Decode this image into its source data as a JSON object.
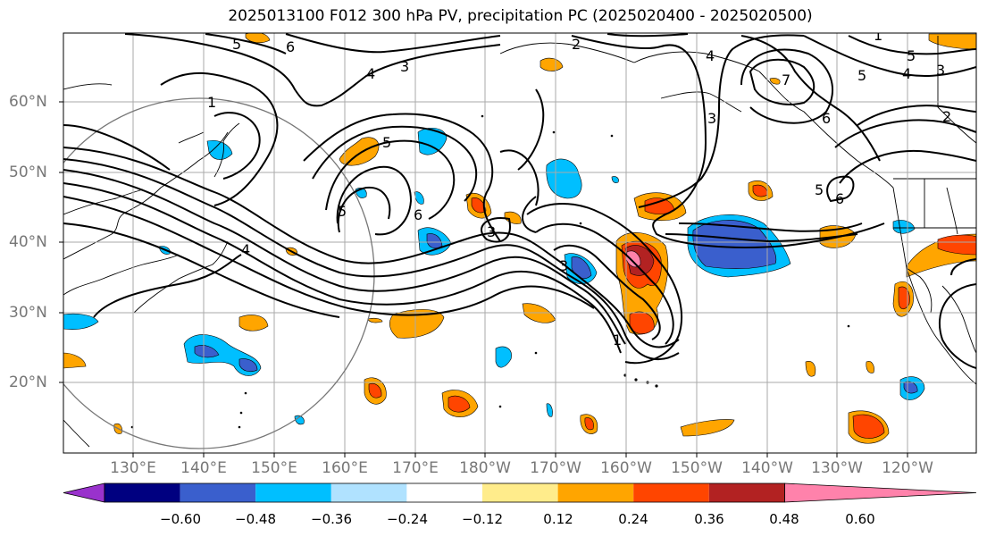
{
  "title": "2025013100 F012 300 hPa PV, precipitation PC (2025020400 - 2025020500)",
  "lat_labels": [
    "60°N",
    "50°N",
    "40°N",
    "30°N",
    "20°N"
  ],
  "lon_labels": [
    "130°E",
    "140°E",
    "150°E",
    "160°E",
    "170°E",
    "180°W",
    "170°W",
    "160°W",
    "150°W",
    "140°W",
    "130°W",
    "120°W"
  ],
  "colorbar": {
    "labels": [
      "−0.60",
      "−0.48",
      "−0.36",
      "−0.24",
      "−0.12",
      "0.12",
      "0.24",
      "0.36",
      "0.48",
      "0.60"
    ],
    "colors": [
      "#9932cc",
      "#000080",
      "#3a5fcd",
      "#00bfff",
      "#b0e2ff",
      "#ffffff",
      "#ffec8b",
      "#ffa500",
      "#ff4500",
      "#b22222",
      "#ff82ab"
    ]
  },
  "contour_labels": [
    "5",
    "6",
    "4",
    "3",
    "1",
    "5",
    "5",
    "6",
    "4",
    "3",
    "1",
    "3",
    "4",
    "2",
    "5",
    "6",
    "7",
    "5",
    "4",
    "3",
    "2",
    "3",
    "5",
    "6",
    "1"
  ]
}
